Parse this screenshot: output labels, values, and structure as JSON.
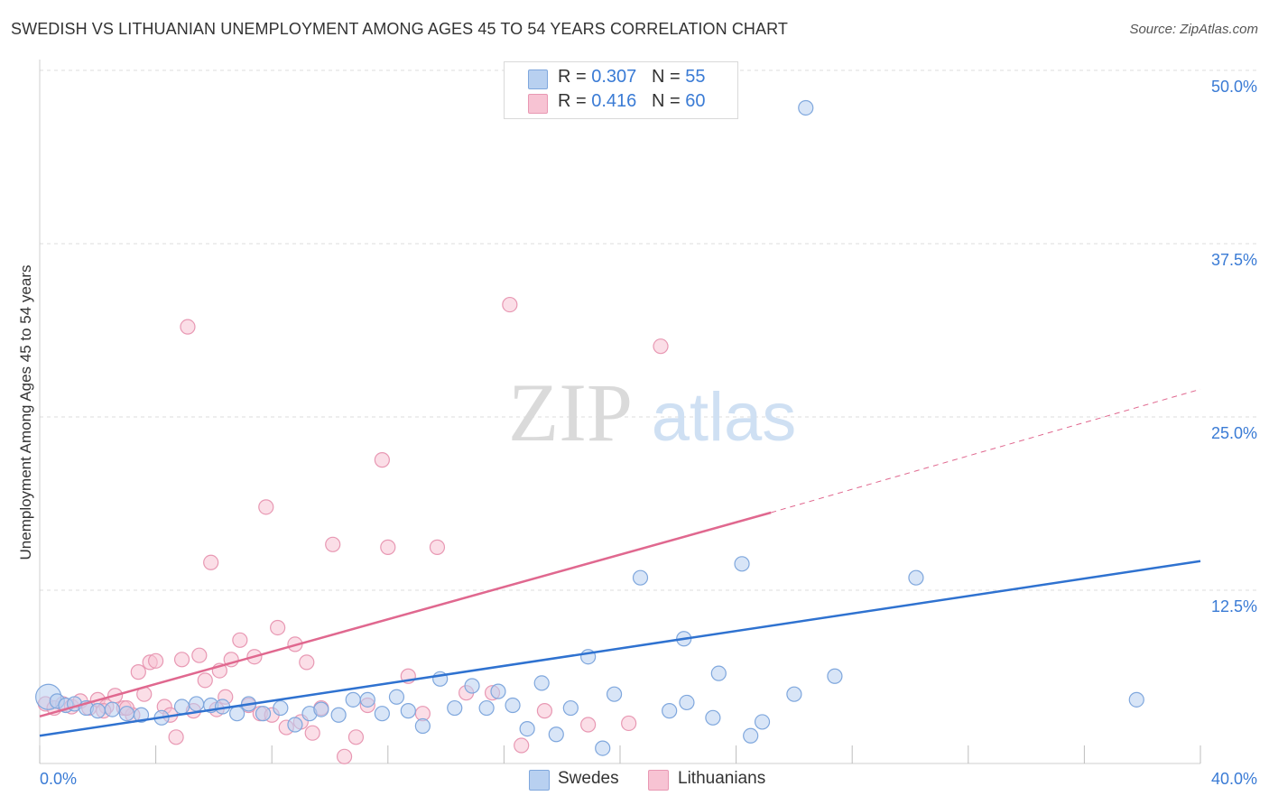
{
  "title": "SWEDISH VS LITHUANIAN UNEMPLOYMENT AMONG AGES 45 TO 54 YEARS CORRELATION CHART",
  "source": "Source: ZipAtlas.com",
  "watermark": {
    "zip": "ZIP",
    "atlas": "atlas"
  },
  "colors": {
    "swedes_fill": "#b8d0f0",
    "swedes_stroke": "#7fa7dd",
    "swedes_line": "#2f72d0",
    "lith_fill": "#f7c3d3",
    "lith_stroke": "#e898b3",
    "lith_line": "#e0688f",
    "accent_text": "#3a7bd5",
    "grid": "#dcdcdc"
  },
  "legend": {
    "rows": [
      {
        "r_label": "R = ",
        "r_value": "0.307",
        "n_label": "N = ",
        "n_value": "55"
      },
      {
        "r_label": "R = ",
        "r_value": "0.416",
        "n_label": "N = ",
        "n_value": "60"
      }
    ]
  },
  "bottom_legend": [
    "Swedes",
    "Lithuanians"
  ],
  "chart_data": {
    "type": "scatter",
    "title": "SWEDISH VS LITHUANIAN UNEMPLOYMENT AMONG AGES 45 TO 54 YEARS CORRELATION CHART",
    "xlabel": "",
    "ylabel": "Unemployment Among Ages 45 to 54 years",
    "xlim": [
      0,
      40
    ],
    "ylim": [
      0,
      50
    ],
    "x_tick_labels": [
      "0.0%",
      "40.0%"
    ],
    "y_tick_labels": [
      "12.5%",
      "25.0%",
      "37.5%",
      "50.0%"
    ],
    "y_ticks": [
      12.5,
      25.0,
      37.5,
      50.0
    ],
    "grid": true,
    "legend_position": "top-center",
    "series": [
      {
        "name": "Swedes",
        "r": 0.307,
        "n": 55,
        "trend": {
          "x": [
            0,
            40
          ],
          "y": [
            2.0,
            14.6
          ]
        },
        "points": [
          [
            0.3,
            4.8
          ],
          [
            0.6,
            4.5
          ],
          [
            0.9,
            4.2
          ],
          [
            1.2,
            4.3
          ],
          [
            1.6,
            4.0
          ],
          [
            2.0,
            3.8
          ],
          [
            2.5,
            3.9
          ],
          [
            3.0,
            3.6
          ],
          [
            3.5,
            3.5
          ],
          [
            4.2,
            3.3
          ],
          [
            4.9,
            4.1
          ],
          [
            5.4,
            4.3
          ],
          [
            5.9,
            4.2
          ],
          [
            6.3,
            4.1
          ],
          [
            6.8,
            3.6
          ],
          [
            7.2,
            4.3
          ],
          [
            7.7,
            3.6
          ],
          [
            8.3,
            4.0
          ],
          [
            8.8,
            2.8
          ],
          [
            9.3,
            3.6
          ],
          [
            9.7,
            3.9
          ],
          [
            10.3,
            3.5
          ],
          [
            10.8,
            4.6
          ],
          [
            11.3,
            4.6
          ],
          [
            11.8,
            3.6
          ],
          [
            12.3,
            4.8
          ],
          [
            12.7,
            3.8
          ],
          [
            13.2,
            2.7
          ],
          [
            13.8,
            6.1
          ],
          [
            14.3,
            4.0
          ],
          [
            14.9,
            5.6
          ],
          [
            15.4,
            4.0
          ],
          [
            15.8,
            5.2
          ],
          [
            16.3,
            4.2
          ],
          [
            16.8,
            2.5
          ],
          [
            17.3,
            5.8
          ],
          [
            17.8,
            2.1
          ],
          [
            18.3,
            4.0
          ],
          [
            18.9,
            7.7
          ],
          [
            19.4,
            1.1
          ],
          [
            19.8,
            5.0
          ],
          [
            20.7,
            13.4
          ],
          [
            21.7,
            3.8
          ],
          [
            22.2,
            9.0
          ],
          [
            22.3,
            4.4
          ],
          [
            23.2,
            3.3
          ],
          [
            23.4,
            6.5
          ],
          [
            24.2,
            14.4
          ],
          [
            24.5,
            2.0
          ],
          [
            24.9,
            3.0
          ],
          [
            26.4,
            47.3
          ],
          [
            26.0,
            5.0
          ],
          [
            27.4,
            6.3
          ],
          [
            30.2,
            13.4
          ],
          [
            37.8,
            4.6
          ]
        ]
      },
      {
        "name": "Lithuanians",
        "r": 0.416,
        "n": 60,
        "trend": {
          "x": [
            0,
            25.2
          ],
          "y": [
            3.4,
            18.1
          ]
        },
        "trend_dashed": {
          "x": [
            25.2,
            40
          ],
          "y": [
            18.1,
            27.0
          ]
        },
        "points": [
          [
            0.2,
            4.3
          ],
          [
            0.5,
            4.0
          ],
          [
            0.8,
            4.3
          ],
          [
            1.1,
            4.1
          ],
          [
            1.4,
            4.5
          ],
          [
            1.7,
            4.0
          ],
          [
            2.0,
            4.6
          ],
          [
            2.3,
            4.1
          ],
          [
            2.6,
            4.9
          ],
          [
            2.9,
            4.0
          ],
          [
            3.2,
            3.5
          ],
          [
            3.4,
            6.6
          ],
          [
            3.6,
            5.0
          ],
          [
            3.8,
            7.3
          ],
          [
            4.0,
            7.4
          ],
          [
            4.3,
            4.1
          ],
          [
            4.5,
            3.5
          ],
          [
            4.7,
            1.9
          ],
          [
            4.9,
            7.5
          ],
          [
            5.1,
            31.5
          ],
          [
            5.3,
            3.8
          ],
          [
            5.5,
            7.8
          ],
          [
            5.7,
            6.0
          ],
          [
            5.9,
            14.5
          ],
          [
            6.1,
            3.9
          ],
          [
            6.2,
            6.7
          ],
          [
            6.4,
            4.8
          ],
          [
            6.6,
            7.5
          ],
          [
            6.9,
            8.9
          ],
          [
            7.2,
            4.2
          ],
          [
            7.4,
            7.7
          ],
          [
            7.6,
            3.6
          ],
          [
            7.8,
            18.5
          ],
          [
            8.0,
            3.5
          ],
          [
            8.2,
            9.8
          ],
          [
            8.5,
            2.6
          ],
          [
            8.8,
            8.6
          ],
          [
            9.0,
            3.0
          ],
          [
            9.2,
            7.3
          ],
          [
            9.4,
            2.2
          ],
          [
            9.7,
            4.0
          ],
          [
            10.1,
            15.8
          ],
          [
            10.5,
            0.5
          ],
          [
            10.9,
            1.9
          ],
          [
            11.3,
            4.2
          ],
          [
            11.8,
            21.9
          ],
          [
            12.0,
            15.6
          ],
          [
            12.7,
            6.3
          ],
          [
            13.2,
            3.6
          ],
          [
            13.7,
            15.6
          ],
          [
            15.6,
            5.1
          ],
          [
            16.2,
            33.1
          ],
          [
            16.6,
            1.3
          ],
          [
            17.4,
            3.8
          ],
          [
            18.9,
            2.8
          ],
          [
            21.4,
            30.1
          ],
          [
            20.3,
            2.9
          ],
          [
            14.7,
            5.1
          ],
          [
            3.0,
            4.0
          ],
          [
            2.2,
            3.8
          ]
        ]
      }
    ]
  }
}
